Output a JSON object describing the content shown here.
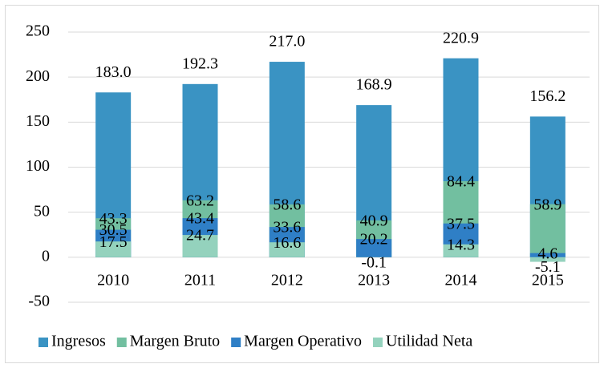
{
  "chart_data": {
    "type": "bar",
    "categories": [
      "2010",
      "2011",
      "2012",
      "2013",
      "2014",
      "2015"
    ],
    "series": [
      {
        "name": "Ingresos",
        "color": "#3a93c3",
        "values": [
          183.0,
          192.3,
          217.0,
          168.9,
          220.9,
          156.2
        ],
        "value_labels": [
          "183.0",
          "192.3",
          "217.0",
          "168.9",
          "220.9",
          "156.2"
        ]
      },
      {
        "name": "Margen Bruto",
        "color": "#72bfa0",
        "values": [
          43.3,
          63.2,
          58.6,
          40.9,
          84.4,
          58.9
        ],
        "value_labels": [
          "43.3",
          "63.2",
          "58.6",
          "40.9",
          "84.4",
          "58.9"
        ]
      },
      {
        "name": "Margen Operativo",
        "color": "#2f7fc6",
        "values": [
          30.5,
          43.4,
          33.6,
          20.2,
          37.5,
          4.6
        ],
        "value_labels": [
          "30.5",
          "43.4",
          "33.6",
          "20.2",
          "37.5",
          "4.6"
        ]
      },
      {
        "name": "Utilidad Neta",
        "color": "#94d2bd",
        "values": [
          17.5,
          24.7,
          16.6,
          -0.1,
          14.3,
          -5.1
        ],
        "value_labels": [
          "17.5",
          "24.7",
          "16.6",
          "-0.1",
          "14.3",
          "-5.1"
        ]
      }
    ],
    "ylim": [
      -50,
      250
    ],
    "yticks": [
      -50,
      0,
      50,
      100,
      150,
      200,
      250
    ],
    "grid": true,
    "legend": "bottom"
  }
}
